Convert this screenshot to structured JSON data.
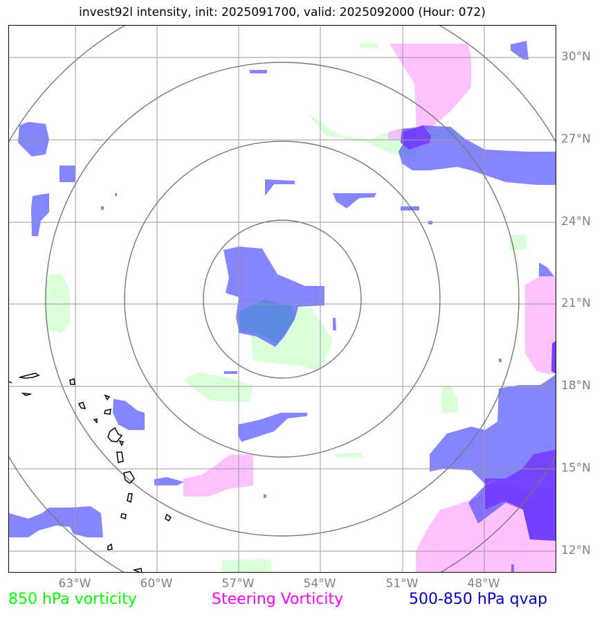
{
  "title": "invest92l intensity, init: 2025091700, valid: 2025092000 (Hour: 072)",
  "lat_labels": [
    "30°N",
    "27°N",
    "24°N",
    "21°N",
    "18°N",
    "15°N",
    "12°N"
  ],
  "lon_labels": [
    "63°W",
    "60°W",
    "57°W",
    "54°W",
    "51°W",
    "48°W"
  ],
  "legend": {
    "vorticity_850": "850 hPa vorticity",
    "steering": "Steering Vorticity",
    "qvap": "500-850 hPa qvap"
  },
  "colors": {
    "vorticity_850": "#00ff00",
    "steering": "#ff00ff",
    "qvap": "#0000cc",
    "grid": "#808080",
    "range_ring": "#777777"
  },
  "range_rings": 4
}
